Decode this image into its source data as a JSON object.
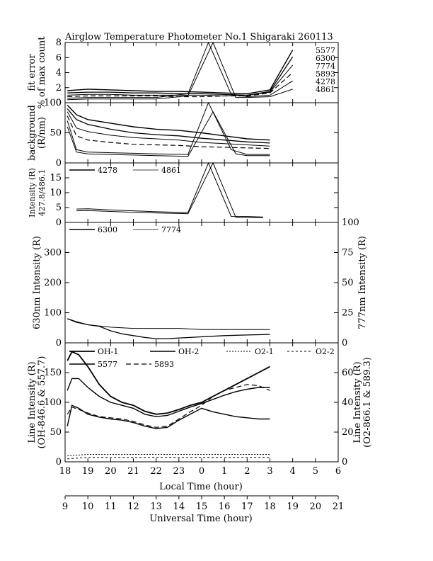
{
  "figure": {
    "title": "Airglow Temperature Photometer No.1  Shigaraki  260113",
    "local_time_label": "Local Time (hour)",
    "universal_time_label": "Universal Time (hour)",
    "local_ticks": [
      "18",
      "19",
      "20",
      "21",
      "22",
      "23",
      "0",
      "1",
      "2",
      "3",
      "4",
      "5",
      "6"
    ],
    "ut_ticks": [
      "9",
      "10",
      "11",
      "12",
      "13",
      "14",
      "15",
      "16",
      "17",
      "18",
      "19",
      "20",
      "21"
    ]
  },
  "chart_data": [
    {
      "type": "line",
      "id": "fit-error",
      "ylabel": [
        "fit error",
        "% of max count"
      ],
      "ylim": [
        0,
        8
      ],
      "yticks": [
        "0",
        "2",
        "4",
        "6",
        "8"
      ],
      "xlim": [
        9,
        21
      ],
      "legend": [
        "5577",
        "6300",
        "7774",
        "5893",
        "4278",
        "4861"
      ],
      "series": [
        {
          "name": "5577",
          "x": [
            9.1,
            10,
            11,
            12,
            13,
            14,
            15,
            16,
            17,
            18,
            19.0
          ],
          "y": [
            1.6,
            1.8,
            1.7,
            1.6,
            1.5,
            1.5,
            1.4,
            1.3,
            1.2,
            1.7,
            7.0
          ]
        },
        {
          "name": "6300",
          "x": [
            9.1,
            10,
            11,
            12,
            13,
            14,
            15,
            16,
            17,
            18,
            19.0
          ],
          "y": [
            1.3,
            1.4,
            1.4,
            1.3,
            1.3,
            1.2,
            1.2,
            1.1,
            1.0,
            1.5,
            6.1
          ]
        },
        {
          "name": "7774",
          "x": [
            9.1,
            10,
            11,
            12,
            13,
            14,
            15,
            16,
            17,
            18,
            19.0
          ],
          "y": [
            1.0,
            1.1,
            1.1,
            1.0,
            1.0,
            1.0,
            1.0,
            0.9,
            1.0,
            1.4,
            5.0
          ]
        },
        {
          "name": "5893",
          "x": [
            9.1,
            10,
            11,
            12,
            13,
            14,
            15,
            16,
            17,
            18,
            19.0
          ],
          "y": [
            0.8,
            0.9,
            0.9,
            0.9,
            0.9,
            0.8,
            0.8,
            0.9,
            0.9,
            1.3,
            4.0
          ]
        },
        {
          "name": "4278",
          "x": [
            9.1,
            10,
            11,
            12,
            13,
            14.4,
            15.3,
            16.3,
            17,
            18,
            19.0
          ],
          "y": [
            0.6,
            0.7,
            0.7,
            0.7,
            0.7,
            1.2,
            8.0,
            1.1,
            0.8,
            1.0,
            2.9
          ]
        },
        {
          "name": "4861",
          "x": [
            9.1,
            10,
            11,
            12,
            13,
            14.4,
            15.5,
            16.5,
            17,
            18,
            19.0
          ],
          "y": [
            0.4,
            0.5,
            0.5,
            0.5,
            0.5,
            0.9,
            8.0,
            0.7,
            0.7,
            0.8,
            1.8
          ]
        }
      ]
    },
    {
      "type": "line",
      "id": "background",
      "ylabel": [
        "background",
        "(R/nm)"
      ],
      "ylim": [
        0,
        100
      ],
      "yticks": [
        "0",
        "50",
        "100"
      ],
      "xlim": [
        9,
        21
      ],
      "series": [
        {
          "name": "5577",
          "x": [
            9.1,
            9.5,
            10,
            11,
            12,
            13,
            14,
            15,
            16,
            17,
            18
          ],
          "y": [
            96,
            80,
            72,
            66,
            60,
            56,
            54,
            50,
            45,
            40,
            38
          ]
        },
        {
          "name": "6300",
          "x": [
            9.1,
            9.5,
            10,
            11,
            12,
            13,
            14,
            15,
            16,
            17,
            18
          ],
          "y": [
            90,
            72,
            64,
            56,
            50,
            47,
            45,
            41,
            38,
            35,
            33
          ]
        },
        {
          "name": "7774",
          "x": [
            9.1,
            9.5,
            10,
            11,
            12,
            13,
            14,
            15,
            16,
            17,
            18
          ],
          "y": [
            85,
            58,
            52,
            46,
            42,
            40,
            38,
            34,
            32,
            30,
            28
          ]
        },
        {
          "name": "5893",
          "x": [
            9.1,
            9.5,
            10,
            11,
            12,
            13,
            14,
            15,
            16,
            17,
            18
          ],
          "y": [
            78,
            45,
            38,
            34,
            31,
            30,
            29,
            27,
            26,
            25,
            24
          ]
        },
        {
          "name": "4278",
          "x": [
            9.1,
            9.5,
            10,
            11,
            12,
            13,
            14.4,
            15.3,
            16.3,
            17,
            18
          ],
          "y": [
            70,
            22,
            18,
            17,
            16,
            15,
            14,
            100,
            22,
            14,
            14
          ]
        },
        {
          "name": "4861",
          "x": [
            9.1,
            9.5,
            10,
            11,
            12,
            13,
            14.4,
            15.5,
            16.5,
            17,
            18
          ],
          "y": [
            60,
            18,
            15,
            14,
            13,
            12,
            11,
            85,
            15,
            12,
            12
          ]
        }
      ]
    },
    {
      "type": "line",
      "id": "blue-lines",
      "ylabel": [
        "Intensity (R)",
        "427.8/486.1"
      ],
      "ylim": [
        0,
        20
      ],
      "yticks": [
        "0",
        "5",
        "10",
        "15"
      ],
      "xlim": [
        9,
        21
      ],
      "legend": [
        "4278",
        "4861"
      ],
      "series": [
        {
          "name": "4278",
          "x": [
            9.5,
            10,
            11,
            12,
            13,
            14,
            14.4,
            15.3,
            16.3,
            17,
            17.7
          ],
          "y": [
            4.5,
            4.6,
            4.2,
            3.9,
            3.6,
            3.4,
            3.3,
            20,
            2.0,
            2.0,
            1.8
          ]
        },
        {
          "name": "4861",
          "x": [
            9.5,
            10,
            11,
            12,
            13,
            14,
            14.4,
            15.5,
            16.5,
            17,
            17.7
          ],
          "y": [
            3.9,
            4.0,
            3.7,
            3.4,
            3.2,
            3.0,
            2.9,
            20,
            1.7,
            1.7,
            1.6
          ]
        }
      ]
    },
    {
      "type": "line",
      "id": "red-lines",
      "ylabel": [
        "630nm Intensity (R)"
      ],
      "ylabel_right": [
        "777nm Intensity (R)"
      ],
      "ylim": [
        0,
        400
      ],
      "yticks": [
        "0",
        "100",
        "200",
        "300"
      ],
      "ylim_right": [
        0,
        100
      ],
      "yticks_right": [
        "0",
        "25",
        "50",
        "75",
        "100"
      ],
      "xlim": [
        9,
        21
      ],
      "legend": [
        "6300",
        "7774"
      ],
      "series": [
        {
          "name": "6300",
          "x": [
            9.1,
            9.5,
            10,
            10.5,
            11,
            11.5,
            12,
            12.5,
            13,
            13.5,
            14,
            15,
            16,
            17,
            18
          ],
          "y": [
            80,
            70,
            60,
            55,
            40,
            30,
            24,
            18,
            14,
            14,
            16,
            20,
            24,
            26,
            28
          ]
        },
        {
          "name": "7774",
          "axis": "right",
          "x": [
            9.1,
            9.5,
            10,
            11,
            12,
            13,
            14,
            15,
            16,
            17,
            18
          ],
          "y": [
            20,
            17,
            15,
            13,
            12,
            12,
            12,
            11,
            11,
            11,
            11
          ]
        }
      ]
    },
    {
      "type": "line",
      "id": "oh-lines",
      "ylabel": [
        "Line Intensity (R)",
        "(OH-846.6 & 557.7)"
      ],
      "ylabel_right": [
        "Line Intensity (R)",
        "(O2-866.1 & 589.3)"
      ],
      "ylim": [
        0,
        200
      ],
      "yticks": [
        "0",
        "50",
        "100",
        "150"
      ],
      "ylim_right": [
        0,
        80
      ],
      "yticks_right": [
        "0",
        "20",
        "40",
        "60"
      ],
      "xlim": [
        9,
        21
      ],
      "legend": [
        "OH-1",
        "OH-2",
        "O2-1",
        "O2-2",
        "5577",
        "5893"
      ],
      "series": [
        {
          "name": "OH-1",
          "x": [
            9.1,
            9.3,
            9.6,
            10,
            10.5,
            11,
            11.5,
            12,
            12.5,
            13,
            13.5,
            14,
            14.5,
            15,
            15.5,
            16,
            16.5,
            17,
            17.5,
            18
          ],
          "y": [
            170,
            185,
            180,
            160,
            130,
            110,
            100,
            95,
            85,
            80,
            82,
            88,
            95,
            100,
            110,
            120,
            130,
            140,
            150,
            160
          ]
        },
        {
          "name": "OH-2",
          "x": [
            9.1,
            9.3,
            9.6,
            10,
            10.5,
            11,
            11.5,
            12,
            12.5,
            13,
            13.5,
            14,
            14.5,
            15,
            15.5,
            16,
            16.5,
            17,
            17.5,
            18
          ],
          "y": [
            120,
            140,
            140,
            125,
            110,
            100,
            95,
            90,
            80,
            76,
            78,
            85,
            92,
            98,
            105,
            112,
            118,
            122,
            125,
            125
          ]
        },
        {
          "name": "5577",
          "x": [
            9.1,
            9.3,
            9.6,
            10,
            10.5,
            11,
            11.5,
            12,
            12.5,
            13,
            13.5,
            14,
            14.5,
            15,
            15.5,
            16,
            16.5,
            17,
            17.5,
            18
          ],
          "y": [
            60,
            95,
            90,
            80,
            75,
            72,
            70,
            66,
            60,
            56,
            58,
            70,
            80,
            90,
            84,
            80,
            76,
            74,
            72,
            72
          ]
        },
        {
          "name": "5893",
          "x": [
            9.1,
            9.3,
            9.6,
            10,
            10.5,
            11,
            11.5,
            12,
            12.5,
            13,
            13.5,
            14,
            14.5,
            15,
            15.5,
            16,
            16.5,
            17,
            17.5,
            18
          ],
          "y": [
            80,
            92,
            88,
            82,
            76,
            74,
            72,
            68,
            62,
            58,
            60,
            72,
            84,
            95,
            110,
            120,
            125,
            130,
            128,
            120
          ]
        },
        {
          "name": "O2-1",
          "axis": "right",
          "x": [
            9.1,
            10,
            11,
            12,
            13,
            14,
            15,
            16,
            17,
            18
          ],
          "y": [
            4,
            5,
            5,
            5,
            5,
            5,
            5,
            5,
            5,
            5
          ]
        },
        {
          "name": "O2-2",
          "axis": "right",
          "x": [
            9.1,
            10,
            11,
            12,
            13,
            14,
            15,
            16,
            17,
            18
          ],
          "y": [
            2,
            3,
            3,
            3,
            3,
            3,
            3,
            3,
            3,
            3
          ]
        }
      ]
    }
  ]
}
